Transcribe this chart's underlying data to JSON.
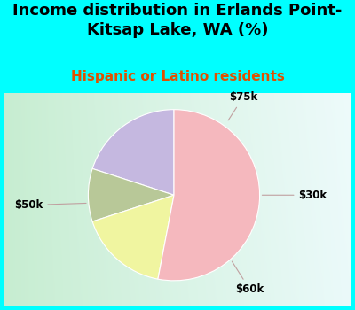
{
  "title": "Income distribution in Erlands Point-\nKitsap Lake, WA (%)",
  "subtitle": "Hispanic or Latino residents",
  "labels": [
    "$75k",
    "$30k",
    "$60k",
    "$50k"
  ],
  "sizes": [
    20,
    10,
    17,
    53
  ],
  "colors": [
    "#c5b8e0",
    "#b8c898",
    "#f0f5a0",
    "#f5b8be"
  ],
  "startangle": 90,
  "title_fontsize": 13,
  "subtitle_fontsize": 11,
  "subtitle_color": "#e05000",
  "bg_color": "#00ffff",
  "pie_bg_left_color": "#c8e8c8",
  "pie_bg_right_color": "#e8f5f5"
}
